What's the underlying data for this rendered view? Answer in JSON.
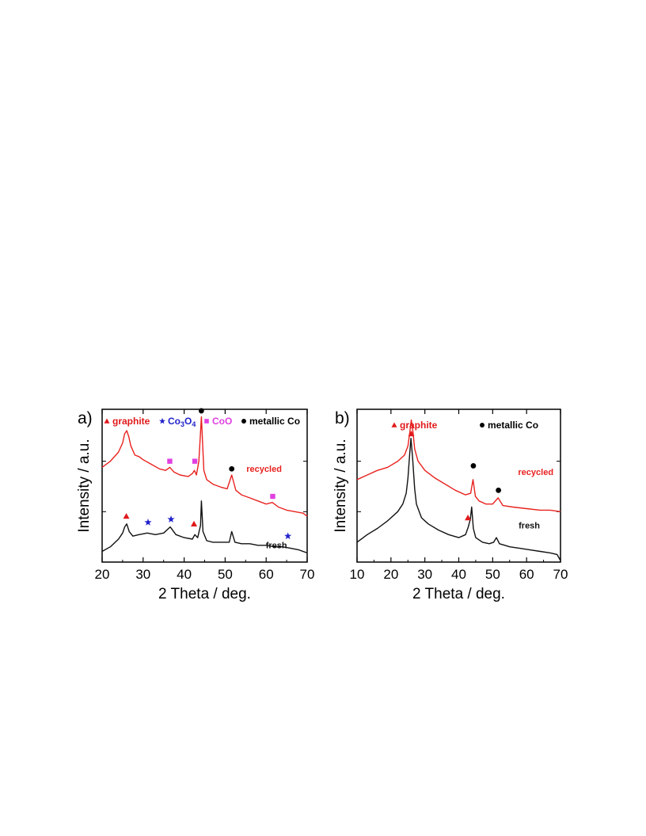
{
  "chart_data": [
    {
      "type": "line",
      "panel_label": "a)",
      "xlabel": "2 Theta / deg.",
      "ylabel": "Intensity / a.u.",
      "xlim": [
        20,
        70
      ],
      "xticks": [
        20,
        30,
        40,
        50,
        60,
        70
      ],
      "yticks_labeled": false,
      "grid": false,
      "legend": {
        "placement": "top",
        "entries": [
          {
            "marker": "triangle",
            "color": "#e0191b",
            "label": "graphite"
          },
          {
            "marker": "star",
            "color": "#2222cc",
            "label": "Co",
            "sub1": "3",
            "mid": "O",
            "sub2": "4"
          },
          {
            "marker": "square",
            "color": "#e040e0",
            "label": "CoO"
          },
          {
            "marker": "circle",
            "color": "#000000",
            "label": "metallic Co"
          }
        ]
      },
      "series": [
        {
          "name": "recycled",
          "color": "#e8221f",
          "x": [
            20,
            22,
            24,
            25,
            25.5,
            26,
            26.5,
            27,
            28,
            29,
            30,
            32,
            34,
            35.5,
            36.5,
            37.5,
            39,
            41,
            42,
            42.5,
            43,
            43.6,
            44.2,
            44.8,
            45.5,
            47,
            49,
            50.5,
            51.6,
            52.6,
            54,
            56,
            58,
            60,
            61.5,
            63,
            65,
            67,
            69,
            70
          ],
          "y": [
            0.62,
            0.66,
            0.72,
            0.78,
            0.84,
            0.86,
            0.82,
            0.76,
            0.7,
            0.69,
            0.67,
            0.64,
            0.61,
            0.6,
            0.62,
            0.59,
            0.57,
            0.56,
            0.58,
            0.6,
            0.57,
            0.66,
            0.95,
            0.6,
            0.54,
            0.51,
            0.49,
            0.48,
            0.57,
            0.47,
            0.44,
            0.42,
            0.4,
            0.38,
            0.39,
            0.36,
            0.34,
            0.33,
            0.32,
            0.3
          ]
        },
        {
          "name": "fresh",
          "color": "#111111",
          "x": [
            20,
            22,
            24,
            25,
            25.5,
            26,
            26.6,
            27.5,
            29,
            31,
            33,
            35,
            36.6,
            38,
            40,
            42,
            42.6,
            43.3,
            44,
            44.2,
            44.6,
            45.5,
            47,
            49,
            51,
            51.6,
            52.4,
            54,
            56,
            58,
            60,
            62,
            64,
            66,
            68,
            70
          ],
          "y": [
            0.07,
            0.1,
            0.15,
            0.19,
            0.23,
            0.25,
            0.2,
            0.17,
            0.18,
            0.19,
            0.18,
            0.19,
            0.23,
            0.18,
            0.16,
            0.15,
            0.18,
            0.16,
            0.24,
            0.4,
            0.2,
            0.14,
            0.13,
            0.13,
            0.13,
            0.2,
            0.13,
            0.12,
            0.12,
            0.11,
            0.11,
            0.1,
            0.1,
            0.09,
            0.08,
            0.06
          ]
        }
      ],
      "markers": [
        {
          "type": "triangle",
          "color": "#e0191b",
          "x": 25.9,
          "y": 0.3
        },
        {
          "type": "star",
          "color": "#2222cc",
          "x": 31.2,
          "y": 0.26
        },
        {
          "type": "star",
          "color": "#2222cc",
          "x": 36.8,
          "y": 0.28
        },
        {
          "type": "triangle",
          "color": "#e0191b",
          "x": 42.4,
          "y": 0.25
        },
        {
          "type": "star",
          "color": "#2222cc",
          "x": 65.3,
          "y": 0.17
        },
        {
          "type": "square",
          "color": "#e040e0",
          "x": 36.5,
          "y": 0.66
        },
        {
          "type": "square",
          "color": "#e040e0",
          "x": 42.6,
          "y": 0.66
        },
        {
          "type": "square",
          "color": "#e040e0",
          "x": 61.6,
          "y": 0.43
        },
        {
          "type": "circle",
          "color": "#000000",
          "x": 44.2,
          "y": 0.99
        },
        {
          "type": "circle",
          "color": "#000000",
          "x": 51.6,
          "y": 0.61
        }
      ],
      "series_labels": [
        {
          "text": "recycled",
          "color": "#e8221f",
          "x": 59.5,
          "y": 0.59
        },
        {
          "text": "fresh",
          "color": "#111111",
          "x": 62.5,
          "y": 0.09
        }
      ]
    },
    {
      "type": "line",
      "panel_label": "b)",
      "xlabel": "2 Theta / deg.",
      "ylabel": "Intensity / a.u.",
      "xlim": [
        10,
        70
      ],
      "xticks": [
        10,
        20,
        30,
        40,
        50,
        60,
        70
      ],
      "yticks_labeled": false,
      "grid": false,
      "legend": {
        "placement": "top",
        "entries": [
          {
            "marker": "triangle",
            "color": "#e0191b",
            "label": "graphite"
          },
          {
            "marker": "circle",
            "color": "#000000",
            "label": "metallic Co"
          }
        ]
      },
      "series": [
        {
          "name": "recycled",
          "color": "#e8221f",
          "x": [
            10,
            13,
            16,
            19,
            22,
            24,
            25,
            25.5,
            26,
            26.5,
            27,
            28,
            30,
            33,
            36,
            39,
            42,
            43.5,
            44.2,
            44.9,
            46,
            48,
            50,
            51.6,
            53,
            56,
            60,
            64,
            67,
            70
          ],
          "y": [
            0.54,
            0.57,
            0.6,
            0.62,
            0.66,
            0.7,
            0.76,
            0.84,
            0.93,
            0.85,
            0.74,
            0.66,
            0.6,
            0.55,
            0.51,
            0.47,
            0.44,
            0.45,
            0.54,
            0.43,
            0.4,
            0.38,
            0.38,
            0.42,
            0.37,
            0.36,
            0.35,
            0.34,
            0.34,
            0.33
          ]
        },
        {
          "name": "fresh",
          "color": "#111111",
          "x": [
            10,
            13,
            16,
            19,
            22,
            23.5,
            24.5,
            25,
            25.5,
            25.9,
            26.4,
            27,
            27.5,
            29,
            31,
            34,
            37,
            40,
            42,
            42.8,
            43.4,
            43.8,
            44.3,
            45,
            47,
            49,
            50.3,
            51.1,
            52,
            55,
            58,
            61,
            64,
            67,
            69,
            70
          ],
          "y": [
            0.13,
            0.18,
            0.22,
            0.27,
            0.33,
            0.38,
            0.45,
            0.55,
            0.7,
            0.81,
            0.68,
            0.48,
            0.38,
            0.29,
            0.25,
            0.21,
            0.18,
            0.16,
            0.18,
            0.23,
            0.28,
            0.36,
            0.22,
            0.16,
            0.13,
            0.12,
            0.13,
            0.16,
            0.12,
            0.1,
            0.09,
            0.08,
            0.07,
            0.06,
            0.05,
            0.01
          ]
        }
      ],
      "markers": [
        {
          "type": "triangle",
          "color": "#e0191b",
          "x": 26.0,
          "y": 0.84
        },
        {
          "type": "triangle",
          "color": "#e0191b",
          "x": 42.7,
          "y": 0.29
        },
        {
          "type": "circle",
          "color": "#000000",
          "x": 44.3,
          "y": 0.63
        },
        {
          "type": "circle",
          "color": "#000000",
          "x": 51.7,
          "y": 0.47
        }
      ],
      "series_labels": [
        {
          "text": "recycled",
          "color": "#e8221f",
          "x": 62.7,
          "y": 0.57
        },
        {
          "text": "fresh",
          "color": "#111111",
          "x": 60.8,
          "y": 0.22
        }
      ]
    }
  ]
}
